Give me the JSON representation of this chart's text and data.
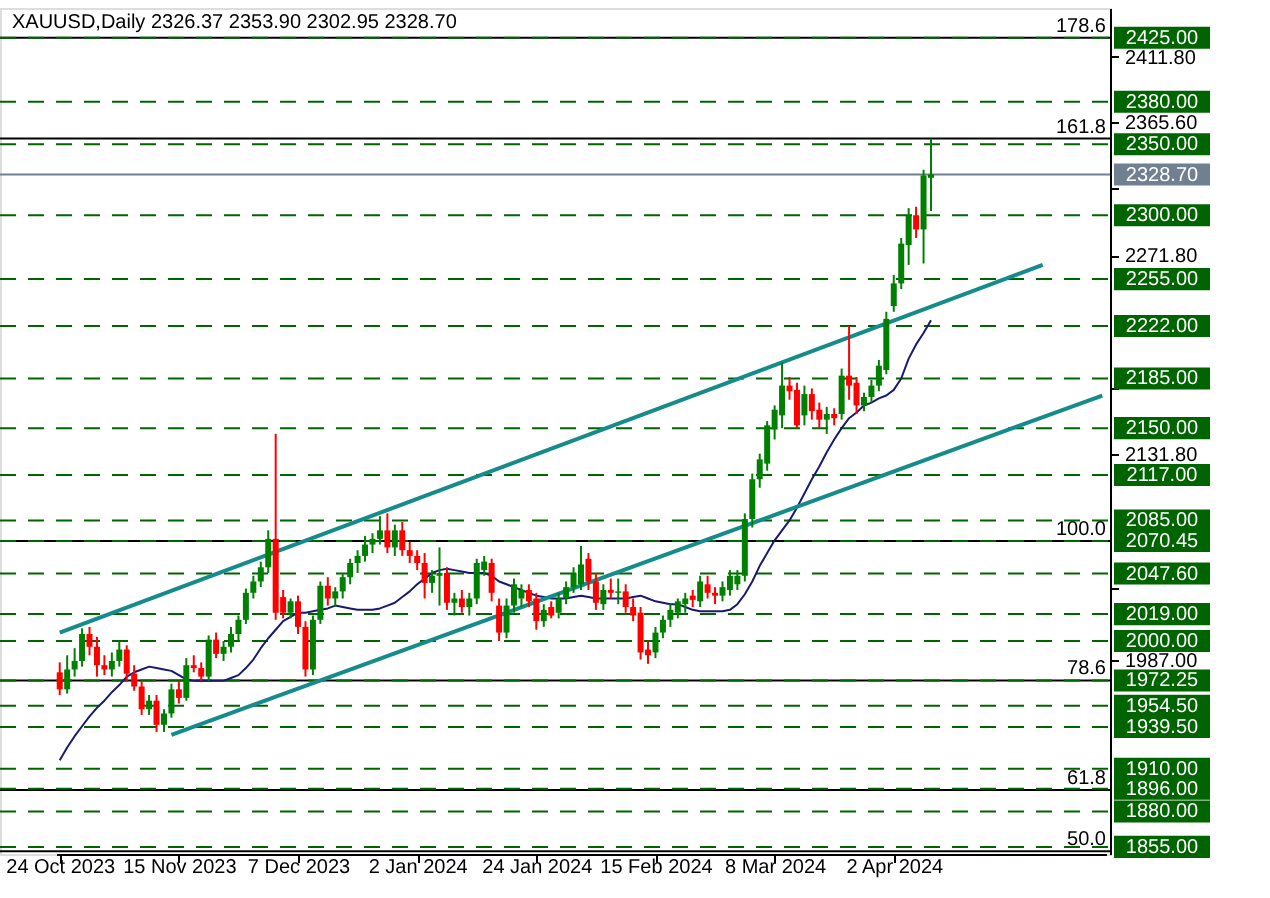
{
  "chart_data": {
    "type": "candlestick",
    "title": "XAUUSD,Daily 2326.37 2353.90 2302.95 2328.70",
    "categories": [
      "24 Oct 2023",
      null,
      null,
      null,
      null,
      null,
      null,
      null,
      null,
      null,
      null,
      null,
      null,
      null,
      null,
      null,
      "15 Nov 2023",
      null,
      null,
      null,
      null,
      null,
      null,
      null,
      null,
      null,
      null,
      null,
      null,
      null,
      null,
      null,
      "7 Dec 2023",
      null,
      null,
      null,
      null,
      null,
      null,
      null,
      null,
      null,
      null,
      null,
      null,
      null,
      null,
      null,
      "2 Jan 2024",
      null,
      null,
      null,
      null,
      null,
      null,
      null,
      null,
      null,
      null,
      null,
      null,
      null,
      null,
      null,
      "24 Jan 2024",
      null,
      null,
      null,
      null,
      null,
      null,
      null,
      null,
      null,
      null,
      null,
      null,
      null,
      null,
      null,
      "15 Feb 2024",
      null,
      null,
      null,
      null,
      null,
      null,
      null,
      null,
      null,
      null,
      null,
      null,
      null,
      null,
      null,
      "8 Mar 2024",
      null,
      null,
      null,
      null,
      null,
      null,
      null,
      null,
      null,
      null,
      null,
      null,
      null,
      null,
      null,
      "2 Apr 2024",
      null,
      null,
      null,
      null,
      null,
      null,
      null,
      null,
      null,
      null,
      null,
      null,
      null,
      null,
      null,
      null,
      null,
      null,
      null,
      null,
      null,
      null,
      null,
      null,
      null,
      null,
      null,
      null
    ],
    "ohlc": [
      [
        1978,
        1985,
        1962,
        1966
      ],
      [
        1966,
        1990,
        1963,
        1980
      ],
      [
        1980,
        1995,
        1975,
        1986
      ],
      [
        1986,
        2009,
        1982,
        2005
      ],
      [
        2005,
        2010,
        1990,
        1996
      ],
      [
        1996,
        2003,
        1975,
        1983
      ],
      [
        1983,
        1990,
        1976,
        1980
      ],
      [
        1980,
        1992,
        1975,
        1986
      ],
      [
        1986,
        2000,
        1982,
        1994
      ],
      [
        1994,
        1997,
        1972,
        1977
      ],
      [
        1977,
        1983,
        1965,
        1968
      ],
      [
        1968,
        1972,
        1948,
        1952
      ],
      [
        1952,
        1962,
        1948,
        1958
      ],
      [
        1958,
        1962,
        1936,
        1941
      ],
      [
        1941,
        1952,
        1936,
        1949
      ],
      [
        1949,
        1970,
        1946,
        1966
      ],
      [
        1966,
        1972,
        1956,
        1960
      ],
      [
        1960,
        1988,
        1958,
        1983
      ],
      [
        1983,
        1990,
        1978,
        1981
      ],
      [
        1981,
        1985,
        1972,
        1975
      ],
      [
        1975,
        2004,
        1972,
        2001
      ],
      [
        2001,
        2006,
        1988,
        1991
      ],
      [
        1991,
        2000,
        1986,
        1996
      ],
      [
        1996,
        2010,
        1992,
        2005
      ],
      [
        2005,
        2018,
        2000,
        2015
      ],
      [
        2015,
        2037,
        2012,
        2034
      ],
      [
        2034,
        2046,
        2030,
        2042
      ],
      [
        2042,
        2056,
        2038,
        2052
      ],
      [
        2052,
        2078,
        2048,
        2072
      ],
      [
        2072,
        2146,
        2015,
        2020
      ],
      [
        2031,
        2036,
        2016,
        2020
      ],
      [
        2020,
        2030,
        2016,
        2028
      ],
      [
        2028,
        2032,
        2005,
        2010
      ],
      [
        2010,
        2014,
        1975,
        1980
      ],
      [
        1980,
        2018,
        1976,
        2015
      ],
      [
        2015,
        2042,
        2012,
        2039
      ],
      [
        2039,
        2045,
        2025,
        2030
      ],
      [
        2030,
        2038,
        2024,
        2035
      ],
      [
        2035,
        2048,
        2030,
        2045
      ],
      [
        2045,
        2058,
        2040,
        2055
      ],
      [
        2055,
        2064,
        2048,
        2060
      ],
      [
        2060,
        2074,
        2056,
        2068
      ],
      [
        2068,
        2076,
        2062,
        2072
      ],
      [
        2072,
        2088,
        2068,
        2078
      ],
      [
        2078,
        2090,
        2062,
        2066
      ],
      [
        2066,
        2082,
        2060,
        2078
      ],
      [
        2078,
        2084,
        2060,
        2064
      ],
      [
        2064,
        2070,
        2055,
        2060
      ],
      [
        2060,
        2064,
        2050,
        2055
      ],
      [
        2055,
        2062,
        2030,
        2041
      ],
      [
        2041,
        2050,
        2034,
        2046
      ],
      [
        2046,
        2066,
        2025,
        2048
      ],
      [
        2048,
        2052,
        2022,
        2027
      ],
      [
        2027,
        2034,
        2018,
        2030
      ],
      [
        2030,
        2036,
        2020,
        2024
      ],
      [
        2024,
        2034,
        2018,
        2030
      ],
      [
        2030,
        2058,
        2026,
        2055
      ],
      [
        2050,
        2060,
        2046,
        2056
      ],
      [
        2055,
        2058,
        2028,
        2034
      ],
      [
        2025,
        2030,
        2000,
        2006
      ],
      [
        2006,
        2030,
        2002,
        2025
      ],
      [
        2025,
        2044,
        2020,
        2040
      ],
      [
        2030,
        2040,
        2024,
        2036
      ],
      [
        2036,
        2040,
        2024,
        2028
      ],
      [
        2030,
        2034,
        2008,
        2014
      ],
      [
        2014,
        2026,
        2010,
        2022
      ],
      [
        2024,
        2028,
        2016,
        2018
      ],
      [
        2020,
        2034,
        2016,
        2030
      ],
      [
        2030,
        2042,
        2026,
        2038
      ],
      [
        2038,
        2052,
        2034,
        2048
      ],
      [
        2040,
        2067,
        2036,
        2054
      ],
      [
        2058,
        2062,
        2036,
        2042
      ],
      [
        2042,
        2048,
        2022,
        2027
      ],
      [
        2026,
        2040,
        2022,
        2036
      ],
      [
        2036,
        2044,
        2030,
        2034
      ],
      [
        2034,
        2044,
        2026,
        2035
      ],
      [
        2035,
        2040,
        2020,
        2024
      ],
      [
        2024,
        2030,
        2014,
        2018
      ],
      [
        2020,
        2024,
        1987,
        1992
      ],
      [
        1994,
        2000,
        1984,
        1990
      ],
      [
        1992,
        2010,
        1988,
        2006
      ],
      [
        2006,
        2018,
        2002,
        2015
      ],
      [
        2015,
        2026,
        2010,
        2022
      ],
      [
        2020,
        2030,
        2016,
        2028
      ],
      [
        2026,
        2034,
        2020,
        2030
      ],
      [
        2032,
        2036,
        2024,
        2029
      ],
      [
        2028,
        2046,
        2024,
        2042
      ],
      [
        2040,
        2046,
        2030,
        2034
      ],
      [
        2034,
        2038,
        2026,
        2032
      ],
      [
        2032,
        2042,
        2028,
        2038
      ],
      [
        2036,
        2050,
        2032,
        2046
      ],
      [
        2040,
        2050,
        2036,
        2046
      ],
      [
        2046,
        2090,
        2042,
        2086
      ],
      [
        2086,
        2118,
        2080,
        2114
      ],
      [
        2114,
        2132,
        2108,
        2128
      ],
      [
        2125,
        2155,
        2120,
        2152
      ],
      [
        2149,
        2166,
        2142,
        2163
      ],
      [
        2159,
        2196,
        2150,
        2180
      ],
      [
        2180,
        2186,
        2170,
        2176
      ],
      [
        2177,
        2182,
        2150,
        2152
      ],
      [
        2159,
        2180,
        2152,
        2174
      ],
      [
        2174,
        2178,
        2156,
        2162
      ],
      [
        2163,
        2168,
        2150,
        2156
      ],
      [
        2156,
        2165,
        2146,
        2160
      ],
      [
        2160,
        2164,
        2152,
        2157
      ],
      [
        2160,
        2192,
        2156,
        2187
      ],
      [
        2187,
        2222,
        2170,
        2180
      ],
      [
        2182,
        2186,
        2160,
        2166
      ],
      [
        2166,
        2175,
        2162,
        2172
      ],
      [
        2172,
        2184,
        2168,
        2180
      ],
      [
        2180,
        2198,
        2176,
        2194
      ],
      [
        2191,
        2232,
        2188,
        2227
      ],
      [
        2236,
        2258,
        2232,
        2252
      ],
      [
        2252,
        2284,
        2248,
        2280
      ],
      [
        2279,
        2305,
        2265,
        2300
      ],
      [
        2300,
        2306,
        2284,
        2290
      ],
      [
        2290,
        2332,
        2266,
        2328
      ],
      [
        2326.37,
        2353.9,
        2302.95,
        2328.7
      ],
      null,
      null,
      null,
      null,
      null,
      null,
      null,
      null,
      null,
      null,
      null,
      null,
      null,
      null,
      null,
      null,
      null,
      null,
      null,
      null,
      null,
      null,
      null
    ],
    "colors": [
      "#ff0000",
      "#008000",
      "#008000",
      "#008000",
      "#ff0000",
      "#ff0000",
      "#ff0000",
      "#008000",
      "#008000",
      "#ff0000",
      "#ff0000",
      "#ff0000",
      "#008000",
      "#ff0000",
      "#008000",
      "#008000",
      "#ff0000",
      "#008000",
      "#ff0000",
      "#ff0000",
      "#008000",
      "#ff0000",
      "#008000",
      "#008000",
      "#008000",
      "#008000",
      "#008000",
      "#008000",
      "#008000",
      "#ff0000",
      "#ff0000",
      "#008000",
      "#ff0000",
      "#ff0000",
      "#008000",
      "#008000",
      "#ff0000",
      "#008000",
      "#008000",
      "#008000",
      "#008000",
      "#008000",
      "#008000",
      "#008000",
      "#ff0000",
      "#008000",
      "#ff0000",
      "#ff0000",
      "#ff0000",
      "#ff0000",
      "#008000",
      "#008000",
      "#ff0000",
      "#008000",
      "#ff0000",
      "#008000",
      "#008000",
      "#008000",
      "#ff0000",
      "#ff0000",
      "#008000",
      "#008000",
      "#008000",
      "#ff0000",
      "#ff0000",
      "#008000",
      "#ff0000",
      "#008000",
      "#008000",
      "#008000",
      "#008000",
      "#ff0000",
      "#ff0000",
      "#008000",
      "#ff0000",
      "#008000",
      "#ff0000",
      "#ff0000",
      "#ff0000",
      "#ff0000",
      "#008000",
      "#008000",
      "#008000",
      "#008000",
      "#008000",
      "#ff0000",
      "#008000",
      "#ff0000",
      "#ff0000",
      "#008000",
      "#008000",
      "#008000",
      "#008000",
      "#008000",
      "#008000",
      "#008000",
      "#008000",
      "#008000",
      "#ff0000",
      "#ff0000",
      "#008000",
      "#ff0000",
      "#ff0000",
      "#008000",
      "#ff0000",
      "#008000",
      "#ff0000",
      "#ff0000",
      "#008000",
      "#008000",
      "#008000",
      "#008000",
      "#008000",
      "#008000",
      "#008000",
      "#ff0000",
      "#008000",
      "#008000",
      null,
      null,
      null,
      null,
      null,
      null,
      null,
      null,
      null,
      null,
      null,
      null,
      null,
      null,
      null,
      null,
      null,
      null,
      null,
      null,
      null,
      null,
      null
    ],
    "series": [
      {
        "type": "line",
        "color": "#191970",
        "values": [
          1916,
          1925,
          1933,
          1940,
          1947,
          1953,
          1958,
          1964,
          1969,
          1975,
          1978,
          1980,
          1982,
          1981,
          1980,
          1979,
          1976,
          1973,
          1972,
          1972,
          1972,
          1972,
          1972,
          1974,
          1976,
          1981,
          1987,
          1995,
          2002,
          2008,
          2014,
          2017,
          2020,
          2020,
          2021,
          2022,
          2023,
          2025,
          2024,
          2023,
          2022,
          2022,
          2022,
          2023,
          2025,
          2027,
          2031,
          2035,
          2040,
          2044,
          2048,
          2050,
          2051,
          2050,
          2049,
          2048,
          2048,
          2048,
          2046,
          2042,
          2040,
          2038,
          2036,
          2034,
          2032,
          2031,
          2030,
          2030,
          2030,
          2031,
          2032,
          2031,
          2030,
          2030,
          2030,
          2030,
          2030,
          2031,
          2032,
          2030,
          2028,
          2027,
          2026,
          2026,
          2024,
          2022,
          2021,
          2021,
          2021,
          2021,
          2022,
          2026,
          2033,
          2042,
          2053,
          2062,
          2071,
          2078,
          2085,
          2094,
          2104,
          2114,
          2123,
          2133,
          2142,
          2150,
          2157,
          2161,
          2166,
          2168,
          2171,
          2173,
          2177,
          2185,
          2199,
          2209,
          2217,
          2226,
          null,
          null,
          null,
          null,
          null,
          null,
          null,
          null,
          null,
          null,
          null,
          null,
          null,
          null,
          null,
          null,
          null,
          null,
          null,
          null,
          null,
          null,
          null
        ]
      },
      {
        "type": "line",
        "color": "#158b8b",
        "values": [
          2006,
          null,
          null,
          null,
          null,
          null,
          null,
          null,
          null,
          null,
          null,
          null,
          null,
          null,
          null,
          null,
          null,
          null,
          null,
          null,
          null,
          null,
          null,
          null,
          null,
          null,
          null,
          null,
          null,
          null,
          null,
          null,
          null,
          null,
          null,
          null,
          null,
          null,
          null,
          null,
          null,
          null,
          null,
          null,
          null,
          null,
          null,
          null,
          null,
          null,
          null,
          null,
          null,
          null,
          null,
          null,
          null,
          null,
          null,
          null,
          null,
          null,
          null,
          null,
          null,
          null,
          null,
          null,
          null,
          null,
          null,
          null,
          null,
          null,
          null,
          null,
          null,
          null,
          null,
          null,
          null,
          null,
          null,
          null,
          null,
          null,
          null,
          null,
          null,
          null,
          null,
          null,
          null,
          null,
          null,
          null,
          null,
          null,
          null,
          null,
          null,
          null,
          null,
          null,
          null,
          null,
          null,
          null,
          null,
          null,
          null,
          null,
          null,
          null,
          null,
          null,
          null,
          null,
          null,
          null,
          null,
          null,
          null,
          null,
          null,
          null,
          null,
          null,
          null,
          null,
          null,
          null,
          2265,
          null,
          null,
          null,
          null,
          null,
          null,
          null,
          null
        ]
      },
      {
        "type": "line",
        "color": "#158b8b",
        "values": [
          null,
          null,
          null,
          null,
          null,
          null,
          null,
          null,
          null,
          null,
          null,
          null,
          null,
          null,
          null,
          1934,
          null,
          null,
          null,
          null,
          null,
          null,
          null,
          null,
          null,
          null,
          null,
          null,
          null,
          null,
          null,
          null,
          null,
          null,
          null,
          null,
          null,
          null,
          null,
          null,
          null,
          null,
          null,
          null,
          null,
          null,
          null,
          null,
          null,
          null,
          null,
          null,
          null,
          null,
          null,
          null,
          null,
          null,
          null,
          null,
          null,
          null,
          null,
          null,
          null,
          null,
          null,
          null,
          null,
          null,
          null,
          null,
          null,
          null,
          null,
          null,
          null,
          null,
          null,
          null,
          null,
          null,
          null,
          null,
          null,
          null,
          null,
          null,
          null,
          null,
          null,
          null,
          null,
          null,
          null,
          null,
          null,
          null,
          null,
          null,
          null,
          null,
          null,
          null,
          null,
          null,
          null,
          null,
          null,
          null,
          null,
          null,
          null,
          null,
          null,
          null,
          null,
          null,
          null,
          null,
          null,
          null,
          null,
          null,
          null,
          null,
          null,
          null,
          null,
          null,
          null,
          null,
          null,
          null,
          null,
          null,
          null,
          null,
          null,
          null,
          2173
        ]
      }
    ],
    "ylim": [
      1850,
      2446
    ],
    "yticks": [
      {
        "value": 2411.8,
        "label": "2411.80"
      },
      {
        "value": 2365.6,
        "label": "2365.60"
      },
      {
        "value": 2319.4,
        "label": null
      },
      {
        "value": 2271.8,
        "label": "2271.80"
      },
      {
        "value": 2178,
        "label": null
      },
      {
        "value": 2131.8,
        "label": "2131.80"
      },
      {
        "value": 2038,
        "label": null
      },
      {
        "value": 1987,
        "label": "1987.00"
      }
    ],
    "ref_lines": [
      {
        "axis": "y",
        "value": 2425,
        "color": "#000000",
        "line_style": "solid"
      },
      {
        "axis": "y",
        "value": 2354,
        "color": "#000000",
        "line_style": "solid"
      },
      {
        "axis": "y",
        "value": 2070.45,
        "color": "#000000",
        "line_style": "solid"
      },
      {
        "axis": "y",
        "value": 1972.25,
        "color": "#000000",
        "line_style": "solid"
      },
      {
        "axis": "y",
        "value": 1895,
        "color": "#000000",
        "line_style": "solid"
      },
      {
        "axis": "y",
        "value": 1852,
        "color": "#000000",
        "line_style": "solid"
      },
      {
        "axis": "y",
        "value": 2328.7,
        "label": "2328.70",
        "color": "#708090",
        "line_style": "solid"
      },
      {
        "axis": "y",
        "value": 2425,
        "label": "2425.00",
        "color": "#006400",
        "line_style": "dashed"
      },
      {
        "axis": "y",
        "value": 2380,
        "label": "2380.00",
        "color": "#006400",
        "line_style": "dashed"
      },
      {
        "axis": "y",
        "value": 2350,
        "label": "2350.00",
        "color": "#006400",
        "line_style": "dashed"
      },
      {
        "axis": "y",
        "value": 2300,
        "label": "2300.00",
        "color": "#006400",
        "line_style": "dashed"
      },
      {
        "axis": "y",
        "value": 2255,
        "label": "2255.00",
        "color": "#006400",
        "line_style": "dashed"
      },
      {
        "axis": "y",
        "value": 2222,
        "label": "2222.00",
        "color": "#006400",
        "line_style": "dashed"
      },
      {
        "axis": "y",
        "value": 2185,
        "label": "2185.00",
        "color": "#006400",
        "line_style": "dashed"
      },
      {
        "axis": "y",
        "value": 2150,
        "label": "2150.00",
        "color": "#006400",
        "line_style": "dashed"
      },
      {
        "axis": "y",
        "value": 2117,
        "label": "2117.00",
        "color": "#006400",
        "line_style": "dashed"
      },
      {
        "axis": "y",
        "value": 2085,
        "label": "2085.00",
        "color": "#006400",
        "line_style": "dashed"
      },
      {
        "axis": "y",
        "value": 2070.45,
        "label": "2070.45",
        "color": "#006400",
        "line_style": "dashed"
      },
      {
        "axis": "y",
        "value": 2047.6,
        "label": "2047.60",
        "color": "#006400",
        "line_style": "dashed"
      },
      {
        "axis": "y",
        "value": 2019,
        "label": "2019.00",
        "color": "#006400",
        "line_style": "dashed"
      },
      {
        "axis": "y",
        "value": 2000,
        "label": "2000.00",
        "color": "#006400",
        "line_style": "dashed"
      },
      {
        "axis": "y",
        "value": 1972.25,
        "label": "1972.25",
        "color": "#006400",
        "line_style": "dashed"
      },
      {
        "axis": "y",
        "value": 1954.5,
        "label": "1954.50",
        "color": "#006400",
        "line_style": "dashed"
      },
      {
        "axis": "y",
        "value": 1939.5,
        "label": "1939.50",
        "color": "#006400",
        "line_style": "dashed"
      },
      {
        "axis": "y",
        "value": 1910,
        "label": "1910.00",
        "color": "#006400",
        "line_style": "dashed"
      },
      {
        "axis": "y",
        "value": 1896,
        "label": "1896.00",
        "color": "#006400",
        "line_style": "dashed"
      },
      {
        "axis": "y",
        "value": 1880,
        "label": "1880.00",
        "color": "#006400",
        "line_style": "dashed"
      },
      {
        "axis": "y",
        "value": 1855,
        "label": "1855.00",
        "color": "#006400",
        "line_style": "dashed"
      }
    ],
    "annotations": [
      {
        "text": "178.6",
        "y": 2425
      },
      {
        "text": "161.8",
        "y": 2354
      },
      {
        "text": "100.0",
        "y": 2070.45
      },
      {
        "text": "78.6",
        "y": 1972.25
      },
      {
        "text": "61.8",
        "y": 1895
      },
      {
        "text": "50.0",
        "y": 1852
      }
    ]
  }
}
